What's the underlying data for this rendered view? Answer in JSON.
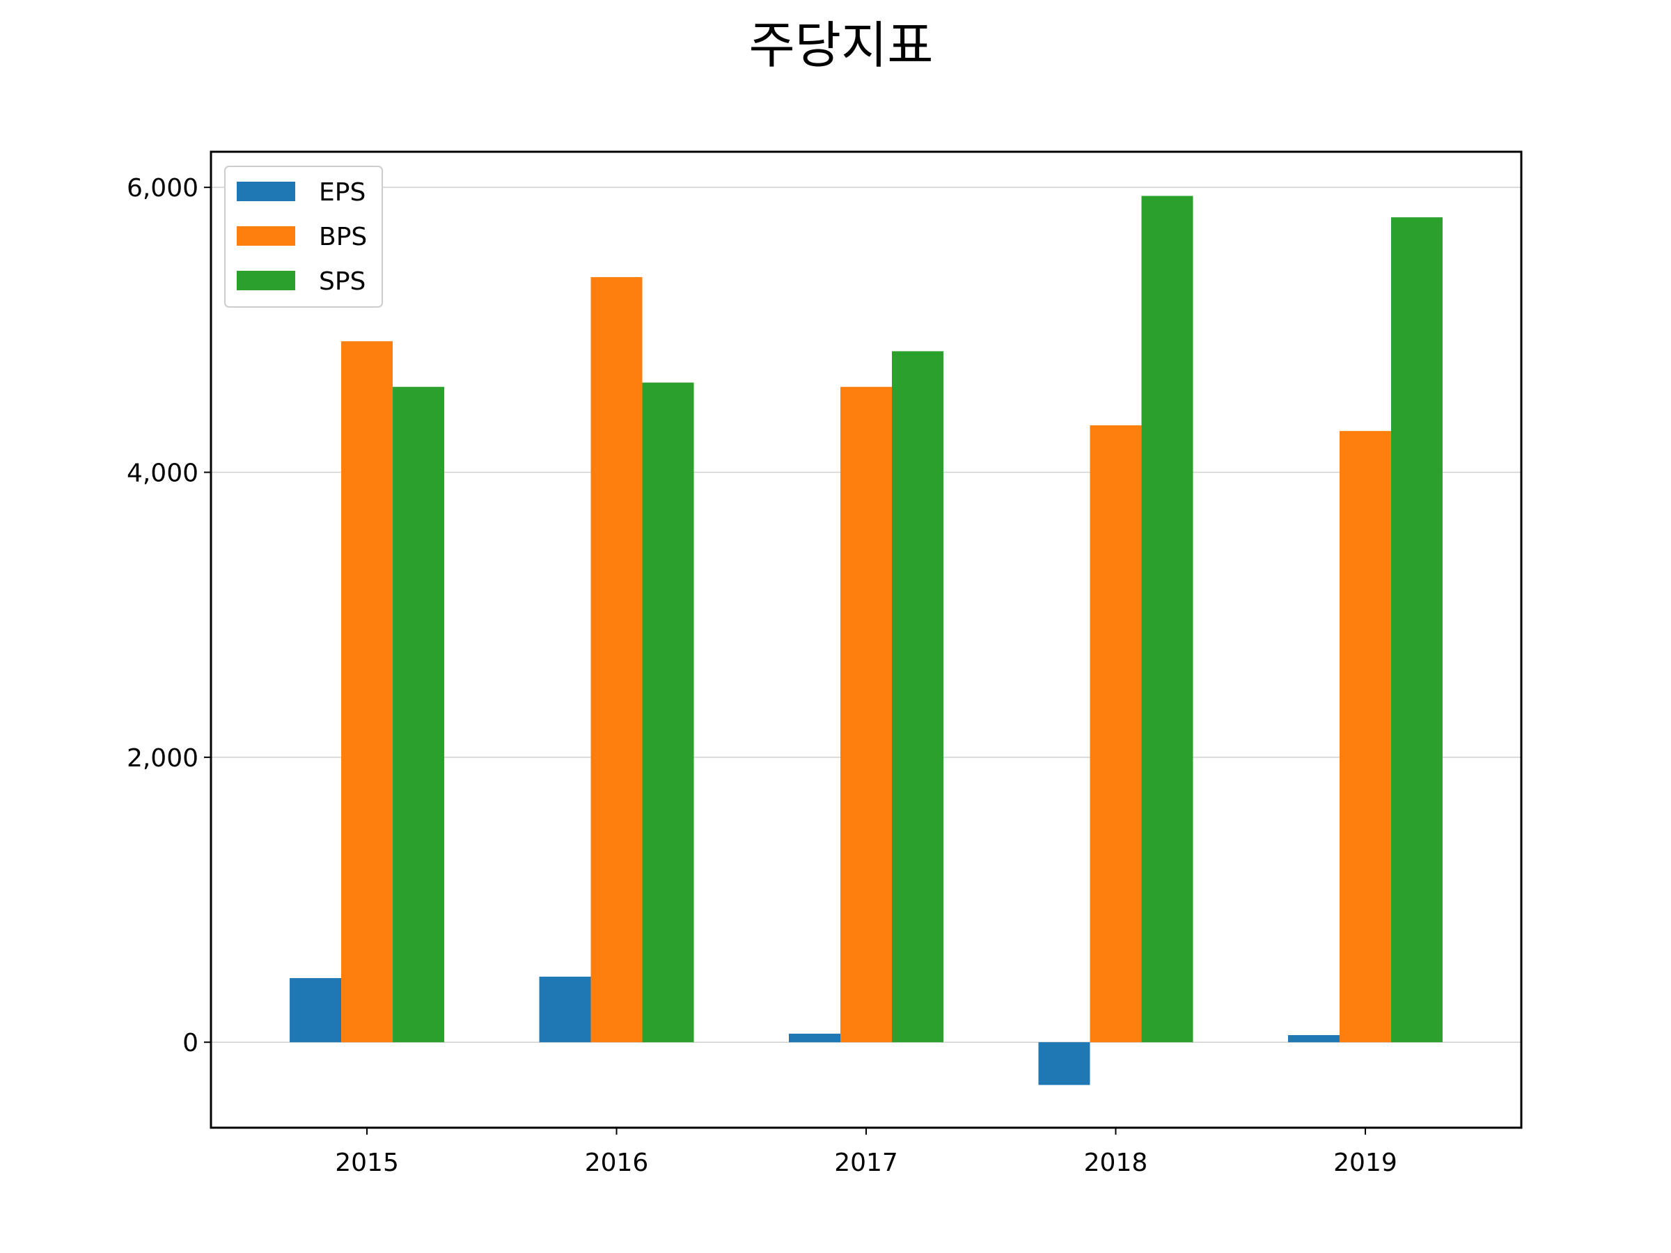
{
  "chart_data": {
    "type": "bar",
    "title": "주당지표",
    "xlabel": "",
    "ylabel": "",
    "categories": [
      "2015",
      "2016",
      "2017",
      "2018",
      "2019"
    ],
    "series": [
      {
        "name": "EPS",
        "color": "#1f77b4",
        "values": [
          450,
          460,
          60,
          -300,
          50
        ]
      },
      {
        "name": "BPS",
        "color": "#ff7f0e",
        "values": [
          4920,
          5370,
          4600,
          4330,
          4290
        ]
      },
      {
        "name": "SPS",
        "color": "#2ca02c",
        "values": [
          4600,
          4630,
          4850,
          5940,
          5790
        ]
      }
    ],
    "ylim": [
      -600,
      6250
    ],
    "yticks": [
      0,
      2000,
      4000,
      6000
    ],
    "ytick_labels": [
      "0",
      "2,000",
      "4,000",
      "6,000"
    ],
    "grid": "y",
    "legend": "top-left"
  }
}
